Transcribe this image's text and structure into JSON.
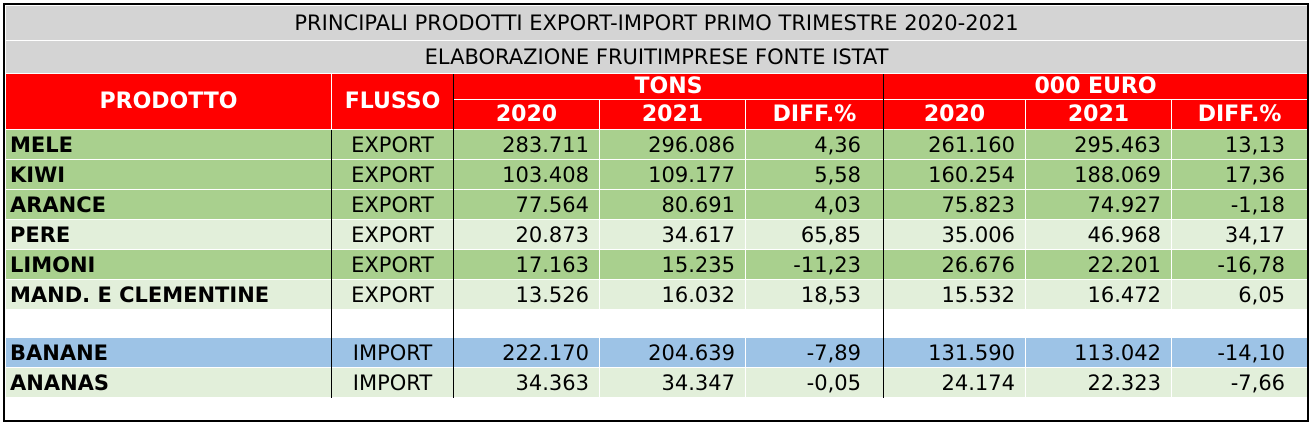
{
  "title": {
    "line1": "PRINCIPALI PRODOTTI EXPORT-IMPORT PRIMO TRIMESTRE 2020-2021",
    "line2": "ELABORAZIONE FRUITIMPRESE FONTE ISTAT"
  },
  "header": {
    "prodotto": "PRODOTTO",
    "flusso": "FLUSSO",
    "tons": "TONS",
    "euro": "000 EURO",
    "y2020": "2020",
    "y2021": "2021",
    "diff": "DIFF.%"
  },
  "colors": {
    "header_bg": "#ff0000",
    "title_bg": "#d4d4d4",
    "green_dark": "#a9d08e",
    "green_light": "#e2efda",
    "blue": "#9dc3e6"
  },
  "rows": [
    {
      "prodotto": "MELE",
      "flusso": "EXPORT",
      "tons2020": "283.711",
      "tons2021": "296.086",
      "tonsdiff": "4,36",
      "eur2020": "261.160",
      "eur2021": "295.463",
      "eurdiff": "13,13"
    },
    {
      "prodotto": "KIWI",
      "flusso": "EXPORT",
      "tons2020": "103.408",
      "tons2021": "109.177",
      "tonsdiff": "5,58",
      "eur2020": "160.254",
      "eur2021": "188.069",
      "eurdiff": "17,36"
    },
    {
      "prodotto": "ARANCE",
      "flusso": "EXPORT",
      "tons2020": "77.564",
      "tons2021": "80.691",
      "tonsdiff": "4,03",
      "eur2020": "75.823",
      "eur2021": "74.927",
      "eurdiff": "-1,18"
    },
    {
      "prodotto": "PERE",
      "flusso": "EXPORT",
      "tons2020": "20.873",
      "tons2021": "34.617",
      "tonsdiff": "65,85",
      "eur2020": "35.006",
      "eur2021": "46.968",
      "eurdiff": "34,17"
    },
    {
      "prodotto": "LIMONI",
      "flusso": "EXPORT",
      "tons2020": "17.163",
      "tons2021": "15.235",
      "tonsdiff": "-11,23",
      "eur2020": "26.676",
      "eur2021": "22.201",
      "eurdiff": "-16,78"
    },
    {
      "prodotto": "MAND. E CLEMENTINE",
      "flusso": "EXPORT",
      "tons2020": "13.526",
      "tons2021": "16.032",
      "tonsdiff": "18,53",
      "eur2020": "15.532",
      "eur2021": "16.472",
      "eurdiff": "6,05"
    },
    {
      "prodotto": "BANANE",
      "flusso": "IMPORT",
      "tons2020": "222.170",
      "tons2021": "204.639",
      "tonsdiff": "-7,89",
      "eur2020": "131.590",
      "eur2021": "113.042",
      "eurdiff": "-14,10"
    },
    {
      "prodotto": "ANANAS",
      "flusso": "IMPORT",
      "tons2020": "34.363",
      "tons2021": "34.347",
      "tonsdiff": "-0,05",
      "eur2020": "24.174",
      "eur2021": "22.323",
      "eurdiff": "-7,66"
    }
  ]
}
